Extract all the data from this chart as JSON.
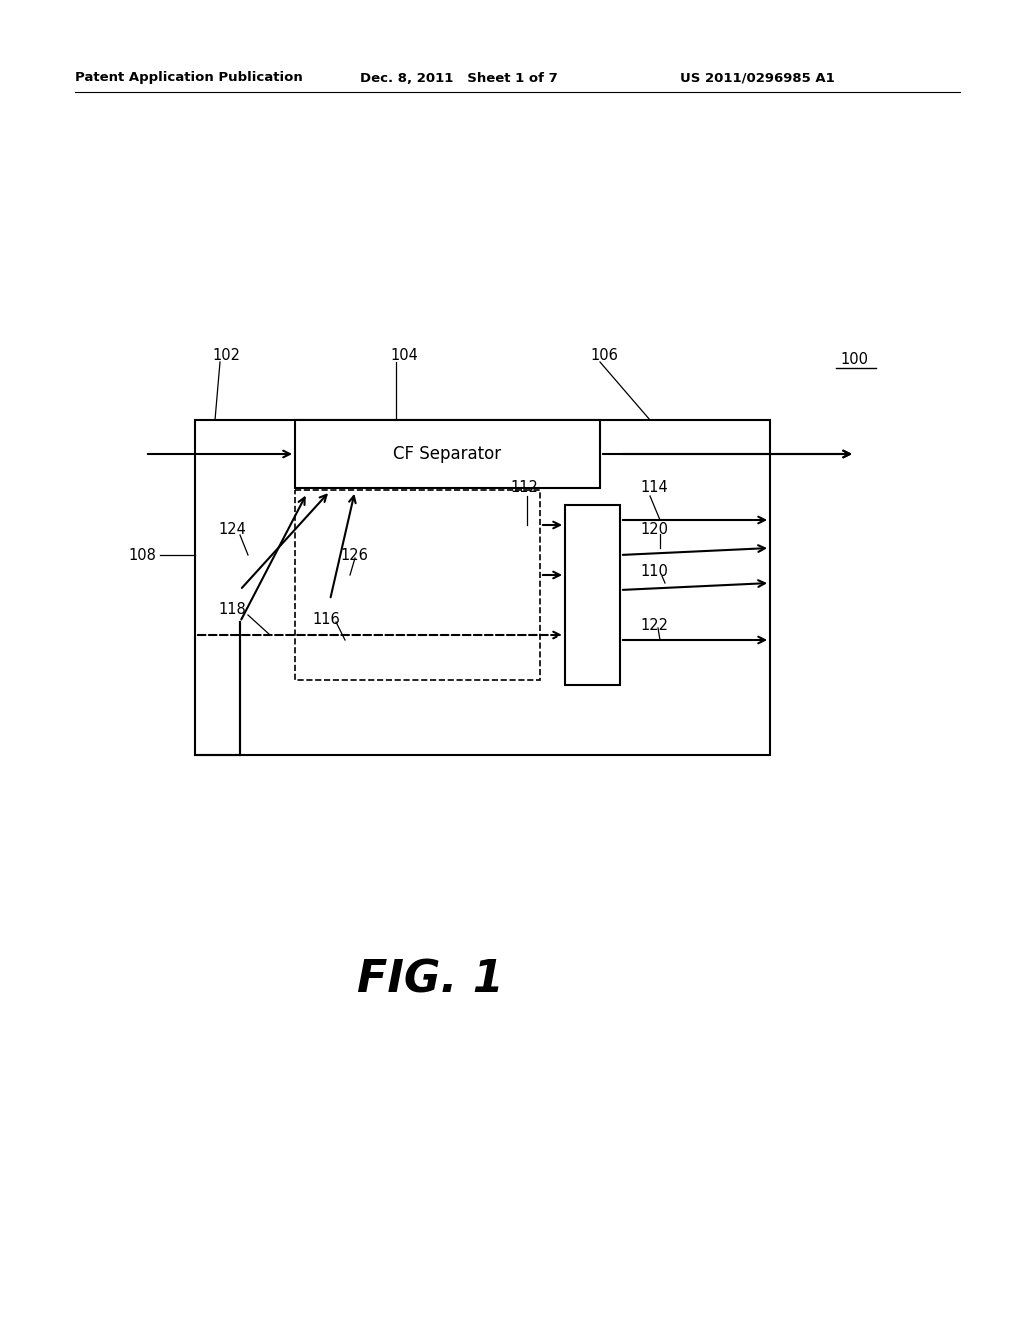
{
  "bg_color": "#ffffff",
  "header_left": "Patent Application Publication",
  "header_mid": "Dec. 8, 2011   Sheet 1 of 7",
  "header_right": "US 2011/0296985 A1",
  "fig_label": "FIG. 1",
  "cf_separator_label": "CF Separator"
}
